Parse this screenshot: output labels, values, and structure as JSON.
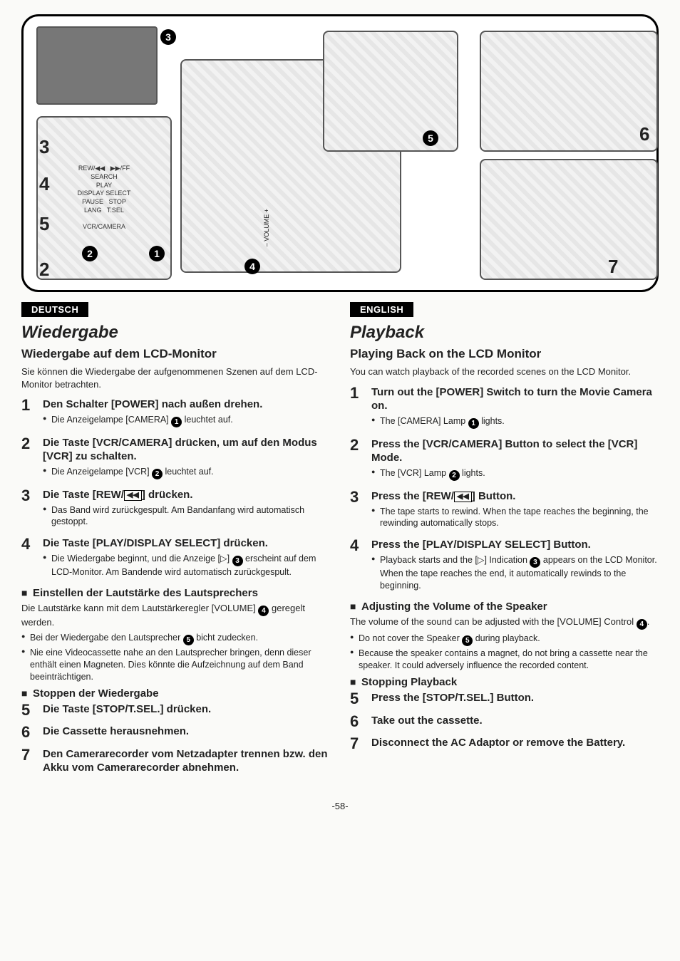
{
  "page_number": "-58-",
  "diagram": {
    "callouts": [
      "1",
      "2",
      "3",
      "4",
      "5"
    ],
    "big_numbers": [
      "2",
      "3",
      "4",
      "5",
      "6",
      "7"
    ],
    "control_labels": [
      "REW/◀◀",
      "▶▶/FF",
      "SEARCH",
      "PLAY",
      "DISPLAY SELECT",
      "PAUSE",
      "STOP",
      "LANG",
      "T.SEL",
      "VCR/CAMERA"
    ],
    "volume_label": "– VOLUME +"
  },
  "left": {
    "lang": "DEUTSCH",
    "title": "Wiedergabe",
    "subtitle": "Wiedergabe auf dem LCD-Monitor",
    "intro": "Sie können die Wiedergabe der aufgenommenen Szenen auf dem LCD-Monitor betrachten.",
    "steps": [
      {
        "title": "Den Schalter [POWER] nach außen drehen.",
        "bullets": [
          "Die Anzeigelampe [CAMERA] {1} leuchtet auf."
        ]
      },
      {
        "title": "Die Taste [VCR/CAMERA] drücken, um auf den Modus [VCR] zu schalten.",
        "bullets": [
          "Die Anzeigelampe [VCR] {2} leuchtet auf."
        ]
      },
      {
        "title": "Die Taste [REW/{REW}] drücken.",
        "bullets": [
          "Das Band wird zurückgespult. Am Bandanfang wird automatisch gestoppt."
        ]
      },
      {
        "title": "Die Taste [PLAY/DISPLAY SELECT] drücken.",
        "bullets": [
          "Die Wiedergabe beginnt, und die Anzeige [▷] {3} erscheint auf dem LCD-Monitor. Am Bandende wird automatisch zurückgespult."
        ]
      }
    ],
    "volume_head": "Einstellen der Lautstärke des Lautsprechers",
    "volume_body": "Die Lautstärke kann mit dem Lautstärkeregler [VOLUME] {4} geregelt werden.",
    "volume_bullets": [
      "Bei der Wiedergabe den Lautsprecher {5} bicht zudecken.",
      "Nie eine Videocassette nahe an den Lautsprecher bringen, denn dieser enthält einen Magneten. Dies könnte die Aufzeichnung auf dem Band beeinträchtigen."
    ],
    "stop_head": "Stoppen der Wiedergabe",
    "stop_steps": [
      "Die Taste [STOP/T.SEL.] drücken.",
      "Die Cassette herausnehmen.",
      "Den Camerarecorder vom Netzadapter trennen bzw. den Akku vom Camerarecorder abnehmen."
    ]
  },
  "right": {
    "lang": "ENGLISH",
    "title": "Playback",
    "subtitle": "Playing Back on the LCD Monitor",
    "intro": "You can watch playback of the recorded scenes on the LCD Monitor.",
    "steps": [
      {
        "title": "Turn out the [POWER] Switch to turn the Movie Camera on.",
        "bullets": [
          "The [CAMERA] Lamp {1} lights."
        ]
      },
      {
        "title": "Press the [VCR/CAMERA] Button to select the [VCR] Mode.",
        "bullets": [
          "The [VCR] Lamp {2} lights."
        ]
      },
      {
        "title": "Press the [REW/{REW}] Button.",
        "bullets": [
          "The tape starts to rewind. When the tape reaches the beginning, the rewinding automatically stops."
        ]
      },
      {
        "title": "Press the [PLAY/DISPLAY SELECT] Button.",
        "bullets": [
          "Playback starts and the [▷] Indication {3} appears on the LCD Monitor. When the tape reaches the end, it automatically rewinds to the beginning."
        ]
      }
    ],
    "volume_head": "Adjusting the Volume of the Speaker",
    "volume_body": "The volume of the sound can be adjusted with the [VOLUME] Control {4}.",
    "volume_bullets": [
      "Do not cover the Speaker {5} during playback.",
      "Because the speaker contains a magnet, do not bring a cassette near the speaker. It could adversely influence the recorded content."
    ],
    "stop_head": "Stopping Playback",
    "stop_steps": [
      "Press the [STOP/T.SEL.] Button.",
      "Take out the cassette.",
      "Disconnect the AC Adaptor or remove the Battery."
    ]
  }
}
